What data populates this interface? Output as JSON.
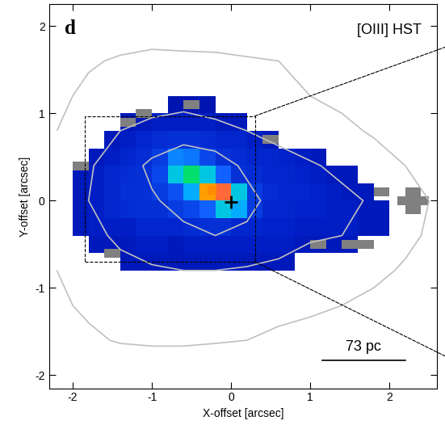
{
  "chart_data": {
    "type": "heatmap",
    "panel_label": "d",
    "title": "[OIII] HST",
    "x_label": "X-offset [arcsec]",
    "y_label": "Y-offset [arcsec]",
    "xlim": [
      -2.3,
      2.6
    ],
    "ylim": [
      -2.15,
      2.25
    ],
    "xticks": [
      -2,
      -1,
      0,
      1,
      2
    ],
    "yticks": [
      -2,
      -1,
      0,
      1,
      2
    ],
    "value_range": [
      0,
      1
    ],
    "x": [
      -1.9,
      -1.7,
      -1.5,
      -1.3,
      -1.1,
      -0.9,
      -0.7,
      -0.5,
      -0.3,
      -0.1,
      0.1,
      0.3,
      0.5,
      0.7,
      0.9,
      1.1,
      1.3,
      1.5,
      1.7,
      1.9
    ],
    "y": [
      -0.7,
      -0.5,
      -0.3,
      -0.1,
      0.1,
      0.3,
      0.5,
      0.7,
      0.9,
      1.1
    ],
    "cells": [
      [
        null,
        null,
        null,
        0.1,
        0.1,
        0.1,
        0.1,
        0.1,
        0.1,
        0.1,
        0.1,
        0.1,
        0.1,
        0.1,
        null,
        null,
        null,
        null,
        null,
        null
      ],
      [
        null,
        0.1,
        0.1,
        0.1,
        0.12,
        0.12,
        0.1,
        0.12,
        0.12,
        0.12,
        0.12,
        0.12,
        0.12,
        0.12,
        0.1,
        0.1,
        0.1,
        0.1,
        null,
        null
      ],
      [
        0.1,
        0.12,
        0.12,
        0.12,
        0.14,
        0.14,
        0.14,
        0.15,
        0.16,
        0.16,
        0.14,
        0.14,
        0.13,
        0.13,
        0.12,
        0.12,
        0.12,
        0.12,
        0.1,
        0.1
      ],
      [
        0.1,
        0.12,
        0.14,
        0.15,
        0.16,
        0.16,
        0.18,
        0.2,
        0.25,
        0.4,
        0.35,
        0.18,
        0.14,
        0.14,
        0.13,
        0.13,
        0.12,
        0.12,
        0.1,
        0.1
      ],
      [
        0.1,
        0.12,
        0.14,
        0.16,
        0.16,
        0.18,
        0.22,
        0.35,
        0.75,
        0.9,
        0.4,
        0.18,
        0.15,
        0.14,
        0.14,
        0.13,
        0.12,
        0.1,
        0.1,
        null
      ],
      [
        0.1,
        0.12,
        0.14,
        0.15,
        0.16,
        0.2,
        0.4,
        0.5,
        0.4,
        0.25,
        0.16,
        0.15,
        0.14,
        0.14,
        0.13,
        0.12,
        0.1,
        0.1,
        null,
        null
      ],
      [
        null,
        0.1,
        0.12,
        0.14,
        0.15,
        0.18,
        0.3,
        0.28,
        0.2,
        0.16,
        0.15,
        0.14,
        0.14,
        0.13,
        0.12,
        0.1,
        null,
        null,
        null,
        null
      ],
      [
        null,
        null,
        0.1,
        0.12,
        0.14,
        0.15,
        0.16,
        0.16,
        0.15,
        0.14,
        0.14,
        0.12,
        0.1,
        null,
        null,
        null,
        null,
        null,
        null,
        null
      ],
      [
        null,
        null,
        null,
        0.1,
        0.1,
        0.12,
        0.12,
        0.12,
        0.12,
        0.1,
        0.1,
        null,
        null,
        null,
        null,
        null,
        null,
        null,
        null,
        null
      ],
      [
        null,
        null,
        null,
        null,
        null,
        null,
        0.08,
        0.08,
        0.08,
        null,
        null,
        null,
        null,
        null,
        null,
        null,
        null,
        null,
        null,
        null
      ]
    ],
    "contours": {
      "color": "#c0c0c0",
      "levels": [
        1,
        2,
        3
      ],
      "x": [
        -2.2,
        -1.8,
        -1.4,
        -1.0,
        -0.6,
        -0.2,
        0.2,
        0.6,
        1.0,
        1.4,
        1.8,
        2.2,
        2.6
      ],
      "y": [
        -2.0,
        -1.6,
        -1.2,
        -0.8,
        -0.4,
        0.0,
        0.4,
        0.8,
        1.2,
        1.6,
        2.0
      ],
      "cells": [
        [
          0,
          0,
          0,
          0,
          0,
          0,
          0,
          0,
          0,
          0,
          0,
          0,
          0
        ],
        [
          0.5,
          0.8,
          1.1,
          1.2,
          1.2,
          1.1,
          1.0,
          0.8,
          0.6,
          0.4,
          0.3,
          0.2,
          0.1
        ],
        [
          0.8,
          1.2,
          1.4,
          1.5,
          1.5,
          1.5,
          1.4,
          1.3,
          1.2,
          1.0,
          0.8,
          0.6,
          0.4
        ],
        [
          1.0,
          1.4,
          1.7,
          1.9,
          2.0,
          2.0,
          1.9,
          1.8,
          1.6,
          1.4,
          1.2,
          0.9,
          0.6
        ],
        [
          1.2,
          1.7,
          2.2,
          2.5,
          2.8,
          3.0,
          2.8,
          2.4,
          2.1,
          2.0,
          1.7,
          1.2,
          0.8
        ],
        [
          1.3,
          2.0,
          2.5,
          2.9,
          3.3,
          3.6,
          3.3,
          2.6,
          2.3,
          2.2,
          1.9,
          1.3,
          0.9
        ],
        [
          1.2,
          1.9,
          2.5,
          3.2,
          3.6,
          3.5,
          2.8,
          2.4,
          2.1,
          1.8,
          1.4,
          1.0,
          0.6
        ],
        [
          1.0,
          1.5,
          2.0,
          2.3,
          2.6,
          2.3,
          2.0,
          1.7,
          1.4,
          1.2,
          0.9,
          0.6,
          0.4
        ],
        [
          0.8,
          1.2,
          1.4,
          1.5,
          1.5,
          1.4,
          1.3,
          1.2,
          1.0,
          0.8,
          0.6,
          0.4,
          0.2
        ],
        [
          0.5,
          0.9,
          1.1,
          1.2,
          1.2,
          1.2,
          1.1,
          1.0,
          0.8,
          0.5,
          0.3,
          0.2,
          0.1
        ],
        [
          0.1,
          0.3,
          0.5,
          0.6,
          0.5,
          0.4,
          0.3,
          0.2,
          0.1,
          0,
          0,
          0,
          0
        ]
      ]
    },
    "masked_cells": {
      "color": "#808080",
      "x": [
        -1.3,
        -1.1,
        -0.5,
        0.5,
        1.7,
        1.9,
        2.2,
        2.3,
        2.4,
        2.3,
        -1.5,
        1.1,
        1.5,
        -1.9
      ],
      "y": [
        0.9,
        1.0,
        1.1,
        0.7,
        -0.5,
        0.1,
        0.0,
        0.1,
        0.0,
        -0.1,
        -0.6,
        -0.5,
        -0.5,
        0.4
      ]
    },
    "zoom_box": {
      "x": [
        -1.85,
        0.3
      ],
      "y": [
        -0.7,
        0.97
      ]
    },
    "scale_bar": {
      "label": "73 pc",
      "x": [
        1.15,
        2.2
      ],
      "y": -1.83
    },
    "points": [
      {
        "x": -0.25,
        "y": 0.12,
        "marker": "s",
        "color": "#ff8c00"
      },
      {
        "x": 0.0,
        "y": -0.02,
        "marker": "+",
        "color": "black"
      }
    ]
  }
}
